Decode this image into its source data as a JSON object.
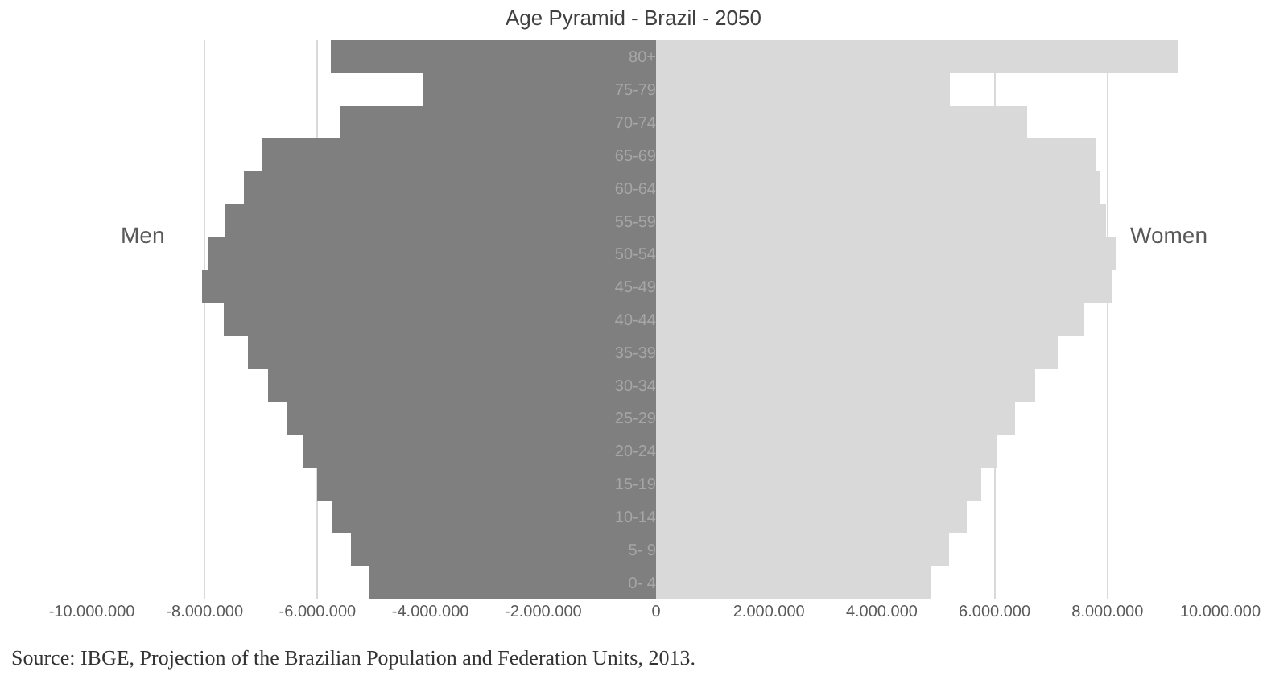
{
  "chart_data": {
    "type": "bar",
    "orientation": "horizontal",
    "title": "Age Pyramid - Brazil - 2050",
    "categories": [
      "80+",
      "75-79",
      "70-74",
      "65-69",
      "60-64",
      "55-59",
      "50-54",
      "45-49",
      "40-44",
      "35-39",
      "30-34",
      "25-29",
      "20-24",
      "15-19",
      "10-14",
      "5- 9",
      "0- 4"
    ],
    "series": [
      {
        "name": "Men",
        "color": "#7f7f7f",
        "values": [
          -5760000,
          -4120000,
          -5590000,
          -6970000,
          -7310000,
          -7640000,
          -7950000,
          -8040000,
          -7660000,
          -7230000,
          -6880000,
          -6550000,
          -6250000,
          -6010000,
          -5740000,
          -5410000,
          -5100000
        ]
      },
      {
        "name": "Women",
        "color": "#d9d9d9",
        "values": [
          9260000,
          5210000,
          6570000,
          7790000,
          7880000,
          7980000,
          8150000,
          8090000,
          7590000,
          7120000,
          6720000,
          6360000,
          6040000,
          5770000,
          5500000,
          5190000,
          4880000
        ]
      }
    ],
    "xlim": [
      -10000000,
      10000000
    ],
    "xticks": [
      {
        "value": -10000000,
        "label": "-10.000.000"
      },
      {
        "value": -8000000,
        "label": "-8.000.000"
      },
      {
        "value": -6000000,
        "label": "-6.000.000"
      },
      {
        "value": -4000000,
        "label": "-4.000.000"
      },
      {
        "value": -2000000,
        "label": "-2.000.000"
      },
      0,
      {
        "value": 2000000,
        "label": "2.000.000"
      },
      {
        "value": 4000000,
        "label": "4.000.000"
      },
      {
        "value": 6000000,
        "label": "6.000.000"
      },
      {
        "value": 8000000,
        "label": "8.000.000"
      },
      {
        "value": 10000000,
        "label": "10.000.000"
      }
    ],
    "grid": "x",
    "legend": false,
    "stacked": true,
    "annotations": [
      "Source: IBGE, Projection of the Brazilian Population and Federation Units, 2013."
    ]
  }
}
